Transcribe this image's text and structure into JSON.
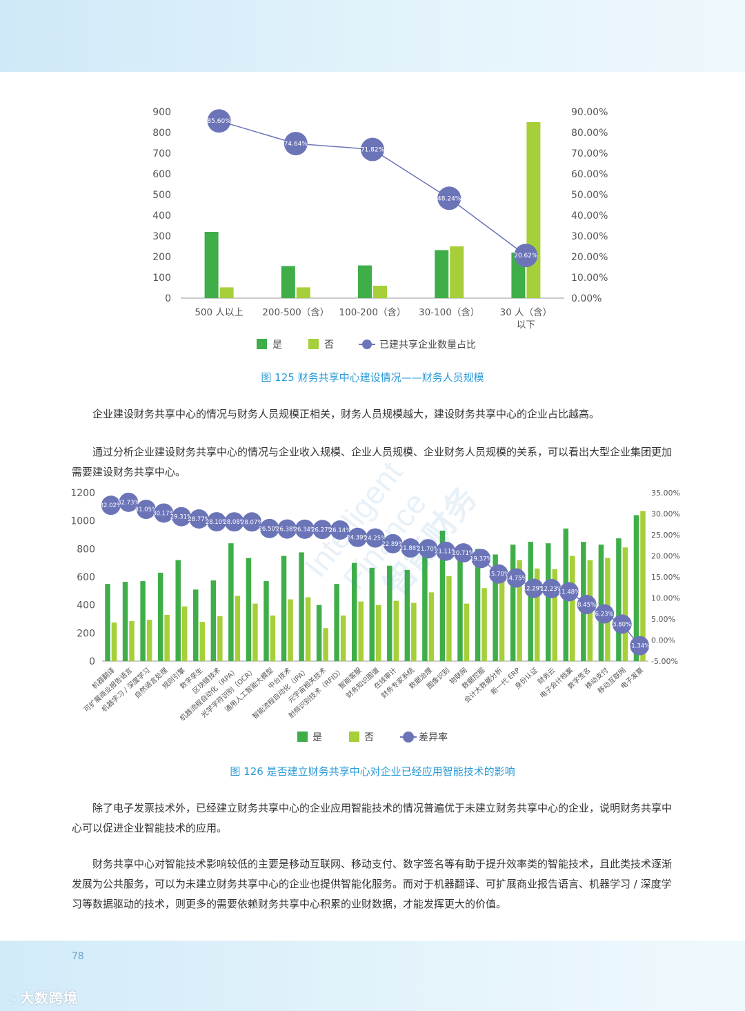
{
  "page": {
    "number": "78",
    "footer_logo": "大数跨境"
  },
  "chart1": {
    "caption": "图 125  财务共享中心建设情况——财务人员规模",
    "legend": {
      "yes": "是",
      "no": "否",
      "line": "已建共享企业数量占比"
    },
    "colors": {
      "yes": "#3fae49",
      "no": "#a6cf39",
      "line": "#6c74b8"
    },
    "chart_data": {
      "type": "bar",
      "categories": [
        "500 人以上",
        "200-500（含）",
        "100-200（含）",
        "30-100（含）",
        "30 人（含）以下"
      ],
      "category_lines": [
        [
          "500 人以上"
        ],
        [
          "200-500（含）"
        ],
        [
          "100-200（含）"
        ],
        [
          "30-100（含）"
        ],
        [
          "30 人（含）",
          "以下"
        ]
      ],
      "series": [
        {
          "name": "是",
          "values": [
            320,
            155,
            158,
            232,
            220
          ]
        },
        {
          "name": "否",
          "values": [
            52,
            52,
            60,
            250,
            850
          ]
        },
        {
          "name": "已建共享企业数量占比",
          "values": [
            85.6,
            74.64,
            71.82,
            48.24,
            20.62
          ],
          "labels": [
            "85.60%",
            "74.64%",
            "71.82%",
            "48.24%",
            "20.62%"
          ]
        }
      ],
      "ylim": [
        0,
        900
      ],
      "y_ticks": [
        "0",
        "100",
        "200",
        "300",
        "400",
        "500",
        "600",
        "700",
        "800",
        "900"
      ],
      "y2lim": [
        0,
        90
      ],
      "y2_ticks": [
        "0.00%",
        "10.00%",
        "20.00%",
        "30.00%",
        "40.00%",
        "50.00%",
        "60.00%",
        "70.00%",
        "80.00%",
        "90.00%"
      ],
      "legend_position": "bottom"
    }
  },
  "text1": "企业建设财务共享中心的情况与财务人员规模正相关，财务人员规模越大，建设财务共享中心的企业占比越高。",
  "text2": "通过分析企业建设财务共享中心的情况与企业收入规模、企业人员规模、企业财务人员规模的关系，可以看出大型企业集团更加需要建设财务共享中心。",
  "chart2": {
    "caption": "图 126  是否建立财务共享中心对企业已经应用智能技术的影响",
    "legend": {
      "yes": "是",
      "no": "否",
      "line": "差异率"
    },
    "colors": {
      "yes": "#3fae49",
      "no": "#a6cf39",
      "line": "#6c74b8"
    },
    "chart_data": {
      "type": "bar",
      "categories": [
        "机器翻译",
        "可扩展商业报告语言",
        "机器学习 / 深度学习",
        "自然语言处理",
        "规则引擎",
        "数字孪生",
        "区块链技术",
        "机器流程自动化（RPA）",
        "光学字符识别（OCR）",
        "通用人工智能大模型",
        "中台技术",
        "智能流程自动化（IPA）",
        "元宇宙相关技术",
        "射频识别技术（RFID）",
        "智能客服",
        "财务知识图谱",
        "在线审计",
        "财务专家系统",
        "数据治理",
        "图像识别",
        "物联网",
        "数据挖掘",
        "会计大数据分析",
        "新一代 ERP",
        "身份认证",
        "财务云",
        "电子会计档案",
        "数字签名",
        "移动支付",
        "移动互联网",
        "电子发票"
      ],
      "series": [
        {
          "name": "是",
          "values": [
            550,
            565,
            570,
            630,
            720,
            510,
            575,
            840,
            735,
            570,
            750,
            775,
            400,
            550,
            700,
            665,
            680,
            650,
            800,
            930,
            810,
            800,
            760,
            830,
            850,
            840,
            945,
            850,
            830,
            875,
            1040
          ]
        },
        {
          "name": "否",
          "values": [
            275,
            285,
            295,
            330,
            390,
            280,
            320,
            465,
            410,
            325,
            440,
            455,
            235,
            325,
            425,
            400,
            430,
            415,
            490,
            605,
            410,
            520,
            645,
            720,
            660,
            655,
            750,
            720,
            735,
            810,
            1070
          ]
        },
        {
          "name": "差异率",
          "values": [
            32.02,
            32.73,
            31.05,
            30.17,
            29.31,
            28.77,
            28.1,
            28.08,
            28.07,
            26.5,
            26.38,
            26.34,
            26.27,
            26.14,
            24.39,
            24.25,
            22.89,
            21.88,
            21.7,
            21.11,
            20.71,
            19.37,
            15.7,
            14.75,
            12.29,
            12.23,
            11.48,
            8.45,
            6.23,
            3.8,
            -1.34
          ],
          "labels": [
            "32.02%",
            "32.73%",
            "31.05%",
            "30.17%",
            "29.31%",
            "28.77%",
            "28.10%",
            "28.08%",
            "28.07%",
            "26.50%",
            "26.38%",
            "26.34%",
            "26.27%",
            "26.14%",
            "24.39%",
            "24.25%",
            "22.89%",
            "21.88%",
            "21.70%",
            "21.11%",
            "20.71%",
            "19.37%",
            "15.70%",
            "14.75%",
            "12.29%",
            "12.23%",
            "11.48%",
            "8.45%",
            "6.23%",
            "3.80%",
            "-1.34%"
          ]
        }
      ],
      "ylim": [
        0,
        1200
      ],
      "y_ticks": [
        "0",
        "200",
        "400",
        "600",
        "800",
        "1000",
        "1200"
      ],
      "y2lim": [
        -5,
        35
      ],
      "y2_ticks": [
        "-5.00%",
        "0.00%",
        "5.00%",
        "10.00%",
        "15.00%",
        "20.00%",
        "25.00%",
        "30.00%",
        "35.00%"
      ],
      "legend_position": "bottom"
    }
  },
  "text3": "除了电子发票技术外，已经建立财务共享中心的企业应用智能技术的情况普遍优于未建立财务共享中心的企业，说明财务共享中心可以促进企业智能技术的应用。",
  "text4": "财务共享中心对智能技术影响较低的主要是移动互联网、移动支付、数字签名等有助于提升效率类的智能技术，且此类技术逐渐发展为公共服务，可以为未建立财务共享中心的企业也提供智能化服务。而对于机器翻译、可扩展商业报告语言、机器学习 / 深度学习等数据驱动的技术，则更多的需要依赖财务共享中心积累的业财数据，才能发挥更大的价值。",
  "watermark": {
    "line1": "Intelligent",
    "line2": "Finance",
    "line3": "智能财务"
  }
}
